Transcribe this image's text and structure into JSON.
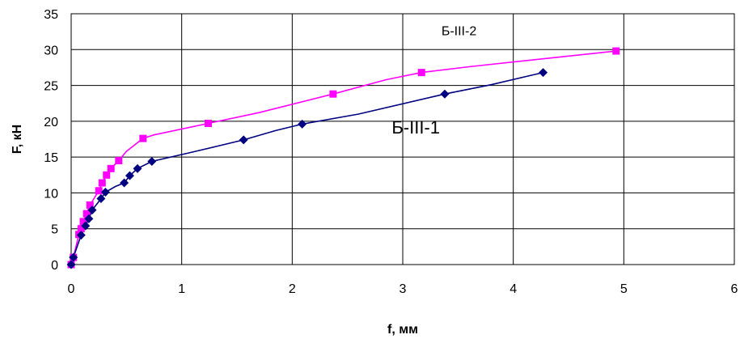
{
  "chart_data": {
    "type": "line",
    "xlabel": "f, мм",
    "ylabel": "F, кН",
    "xlim": [
      0,
      6
    ],
    "ylim": [
      0,
      35
    ],
    "xticks": [
      0,
      1,
      2,
      3,
      4,
      5,
      6
    ],
    "yticks": [
      0,
      5,
      10,
      15,
      20,
      25,
      30,
      35
    ],
    "grid": true,
    "annotations": [
      {
        "text": "Б-III-2",
        "x": 3.35,
        "y": 32.0,
        "size": "small"
      },
      {
        "text": "Б-III-1",
        "x": 2.9,
        "y": 18.3,
        "size": "big"
      }
    ],
    "series": [
      {
        "name": "Б-III-2",
        "color": "#ff00ff",
        "marker": "square",
        "points": [
          [
            0.0,
            0.0
          ],
          [
            0.02,
            1.0
          ],
          [
            0.07,
            4.2
          ],
          [
            0.09,
            5.0
          ],
          [
            0.11,
            6.0
          ],
          [
            0.14,
            7.1
          ],
          [
            0.17,
            8.3
          ],
          [
            0.25,
            10.3
          ],
          [
            0.28,
            11.4
          ],
          [
            0.32,
            12.5
          ],
          [
            0.36,
            13.4
          ],
          [
            0.43,
            14.5
          ],
          [
            0.65,
            17.6
          ],
          [
            1.24,
            19.7
          ],
          [
            2.37,
            23.8
          ],
          [
            3.17,
            26.8
          ],
          [
            4.93,
            29.8
          ]
        ],
        "line": [
          [
            0.0,
            0.0
          ],
          [
            0.02,
            1.0
          ],
          [
            0.07,
            4.2
          ],
          [
            0.09,
            5.0
          ],
          [
            0.11,
            6.0
          ],
          [
            0.14,
            7.1
          ],
          [
            0.17,
            8.3
          ],
          [
            0.25,
            10.3
          ],
          [
            0.28,
            11.4
          ],
          [
            0.32,
            12.5
          ],
          [
            0.36,
            13.4
          ],
          [
            0.43,
            14.5
          ],
          [
            0.5,
            15.8
          ],
          [
            0.65,
            17.6
          ],
          [
            0.75,
            18.1
          ],
          [
            1.24,
            19.7
          ],
          [
            1.7,
            21.2
          ],
          [
            2.37,
            23.8
          ],
          [
            2.85,
            25.8
          ],
          [
            3.17,
            26.8
          ],
          [
            3.6,
            27.6
          ],
          [
            4.2,
            28.6
          ],
          [
            4.93,
            29.8
          ]
        ]
      },
      {
        "name": "Б-III-1",
        "color": "#000080",
        "marker": "diamond",
        "points": [
          [
            0.0,
            0.0
          ],
          [
            0.02,
            1.0
          ],
          [
            0.09,
            4.1
          ],
          [
            0.13,
            5.4
          ],
          [
            0.16,
            6.4
          ],
          [
            0.19,
            7.6
          ],
          [
            0.27,
            9.2
          ],
          [
            0.31,
            10.1
          ],
          [
            0.48,
            11.4
          ],
          [
            0.53,
            12.4
          ],
          [
            0.6,
            13.4
          ],
          [
            0.73,
            14.4
          ],
          [
            1.56,
            17.4
          ],
          [
            2.09,
            19.6
          ],
          [
            3.38,
            23.8
          ],
          [
            4.27,
            26.8
          ]
        ],
        "line": [
          [
            0.0,
            0.0
          ],
          [
            0.02,
            1.0
          ],
          [
            0.09,
            4.1
          ],
          [
            0.13,
            5.4
          ],
          [
            0.16,
            6.4
          ],
          [
            0.19,
            7.6
          ],
          [
            0.27,
            9.2
          ],
          [
            0.31,
            10.1
          ],
          [
            0.4,
            10.9
          ],
          [
            0.48,
            11.4
          ],
          [
            0.53,
            12.4
          ],
          [
            0.6,
            13.4
          ],
          [
            0.73,
            14.4
          ],
          [
            1.1,
            15.7
          ],
          [
            1.56,
            17.4
          ],
          [
            1.85,
            18.7
          ],
          [
            2.09,
            19.6
          ],
          [
            2.6,
            21.0
          ],
          [
            3.38,
            23.8
          ],
          [
            3.8,
            25.1
          ],
          [
            4.27,
            26.8
          ]
        ]
      }
    ]
  }
}
